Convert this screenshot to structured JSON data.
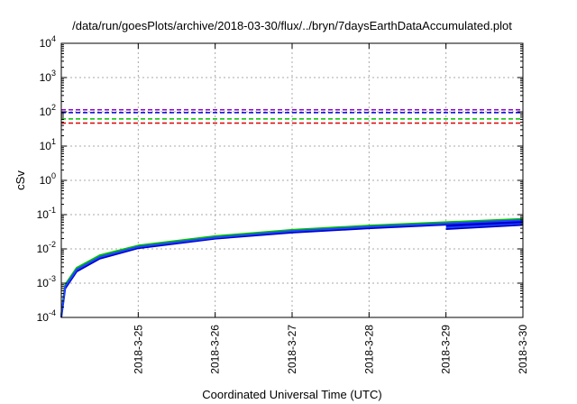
{
  "chart_data": {
    "type": "line",
    "title": "/data/run/goesPlots/archive/2018-03-30/flux/../bryn/7daysEarthDataAccumulated.plot",
    "xlabel": "Coordinated Universal Time (UTC)",
    "ylabel": "cSv",
    "y_scale": "log",
    "ylim": [
      0.0001,
      10000
    ],
    "xlim": [
      "2018-03-24T00:00",
      "2018-03-30T00:00"
    ],
    "x_ticks": [
      "2018-3-25",
      "2018-3-26",
      "2018-3-27",
      "2018-3-28",
      "2018-3-29",
      "2018-3-30"
    ],
    "y_ticks": [
      {
        "base": "10",
        "exp": "-4",
        "value": 0.0001
      },
      {
        "base": "10",
        "exp": "-3",
        "value": 0.001
      },
      {
        "base": "10",
        "exp": "-2",
        "value": 0.01
      },
      {
        "base": "10",
        "exp": "-1",
        "value": 0.1
      },
      {
        "base": "10",
        "exp": "0",
        "value": 1
      },
      {
        "base": "10",
        "exp": "1",
        "value": 10
      },
      {
        "base": "10",
        "exp": "2",
        "value": 100
      },
      {
        "base": "10",
        "exp": "3",
        "value": 1000
      },
      {
        "base": "10",
        "exp": "4",
        "value": 10000
      }
    ],
    "grid": true,
    "threshold_lines": [
      {
        "value": 115,
        "color": "#9400d3"
      },
      {
        "value": 95,
        "color": "#0000cd"
      },
      {
        "value": 62,
        "color": "#00c000"
      },
      {
        "value": 47,
        "color": "#e00000"
      }
    ],
    "series": [
      {
        "color": "#00c000",
        "x": [
          "2018-03-24T00:00",
          "2018-03-24T01:12",
          "2018-03-24T04:48",
          "2018-03-24T12:00",
          "2018-03-25T00:00",
          "2018-03-26T00:00",
          "2018-03-27T00:00",
          "2018-03-28T00:00",
          "2018-03-29T00:00",
          "2018-03-30T00:00"
        ],
        "y": [
          0.00012,
          0.0009,
          0.0028,
          0.0065,
          0.0125,
          0.0235,
          0.036,
          0.048,
          0.06,
          0.075
        ]
      },
      {
        "color": "#0000cd",
        "x": [
          "2018-03-24T00:00",
          "2018-03-24T01:12",
          "2018-03-24T04:48",
          "2018-03-24T12:00",
          "2018-03-25T00:00",
          "2018-03-26T00:00",
          "2018-03-27T00:00",
          "2018-03-28T00:00",
          "2018-03-29T00:00",
          "2018-03-30T00:00"
        ],
        "y": [
          0.0001,
          0.0007,
          0.0022,
          0.0052,
          0.0105,
          0.02,
          0.03,
          0.04,
          0.051,
          0.063
        ]
      },
      {
        "color": "#1e46ff",
        "x": [
          "2018-03-24T00:00",
          "2018-03-24T01:12",
          "2018-03-24T04:48",
          "2018-03-24T12:00",
          "2018-03-25T00:00",
          "2018-03-26T00:00",
          "2018-03-27T00:00",
          "2018-03-28T00:00",
          "2018-03-29T00:00",
          "2018-03-30T00:00"
        ],
        "y": [
          0.00011,
          0.0008,
          0.0025,
          0.0058,
          0.0115,
          0.0215,
          0.033,
          0.044,
          0.055,
          0.069
        ]
      },
      {
        "color": "#0000cd",
        "x": [
          "2018-03-29T00:00",
          "2018-03-30T00:00"
        ],
        "y": [
          0.038,
          0.05
        ]
      },
      {
        "color": "#1e46ff",
        "x": [
          "2018-03-29T00:00",
          "2018-03-30T00:00"
        ],
        "y": [
          0.042,
          0.056
        ]
      },
      {
        "color": "#0000cd",
        "x": [
          "2018-03-29T00:00",
          "2018-03-30T00:00"
        ],
        "y": [
          0.047,
          0.06
        ]
      }
    ]
  }
}
